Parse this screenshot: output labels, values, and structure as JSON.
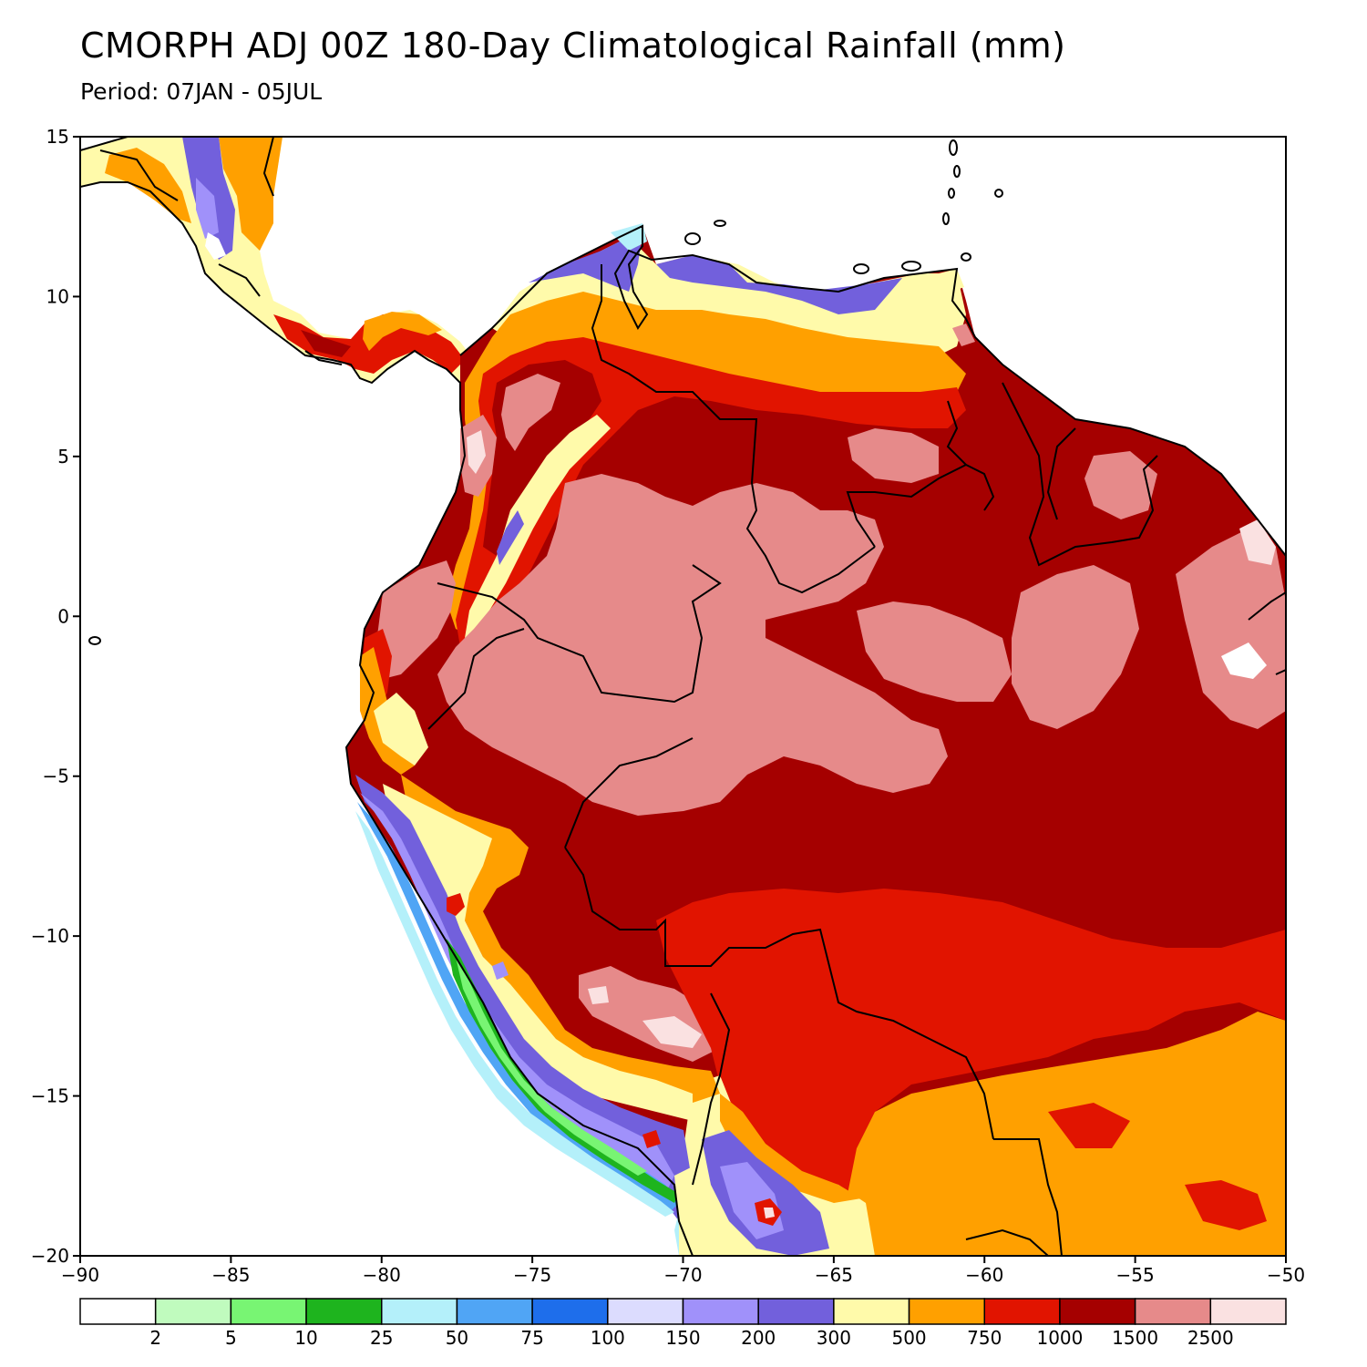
{
  "header": {
    "title": "CMORPH ADJ 00Z 180-Day Climatological Rainfall (mm)",
    "subtitle": "Period: 07JAN - 05JUL"
  },
  "axes": {
    "lon_ticks": [
      {
        "value": -90,
        "label": "−90"
      },
      {
        "value": -85,
        "label": "−85"
      },
      {
        "value": -80,
        "label": "−80"
      },
      {
        "value": -75,
        "label": "−75"
      },
      {
        "value": -70,
        "label": "−70"
      },
      {
        "value": -65,
        "label": "−65"
      },
      {
        "value": -60,
        "label": "−60"
      },
      {
        "value": -55,
        "label": "−55"
      },
      {
        "value": -50,
        "label": "−50"
      }
    ],
    "lat_ticks": [
      {
        "value": 15,
        "label": "15"
      },
      {
        "value": 10,
        "label": "10"
      },
      {
        "value": 5,
        "label": "5"
      },
      {
        "value": 0,
        "label": "0"
      },
      {
        "value": -5,
        "label": "−5"
      },
      {
        "value": -10,
        "label": "−10"
      },
      {
        "value": -15,
        "label": "−15"
      },
      {
        "value": -20,
        "label": "−20"
      }
    ],
    "lon_range": [
      -90,
      -50
    ],
    "lat_range": [
      -20,
      15
    ]
  },
  "colorbar": {
    "colors": [
      "#ffffff",
      "#c0fbbe",
      "#78f573",
      "#1eb41e",
      "#b4f0fa",
      "#50a5f5",
      "#1e6eeb",
      "#dcdcfe",
      "#a091fa",
      "#7260dc",
      "#fffaaa",
      "#ffa000",
      "#e11400",
      "#a50000",
      "#e68a8a",
      "#fae1e1"
    ],
    "labels": [
      "2",
      "5",
      "10",
      "25",
      "50",
      "75",
      "100",
      "150",
      "200",
      "300",
      "500",
      "750",
      "1000",
      "1500",
      "2500"
    ]
  },
  "palette": {
    "ocean": "#ffffff",
    "coast": "#000000",
    "borders": "#a0a0a0"
  }
}
